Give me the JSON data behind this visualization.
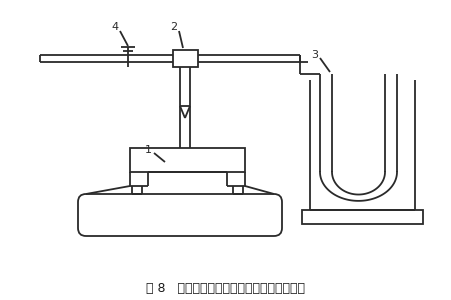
{
  "title": "图 8   自救器呼吸系统气密性试验装置示意图",
  "title_fontsize": 9,
  "bg_color": "#ffffff",
  "line_color": "#2a2a2a",
  "lw": 1.3,
  "figw": 4.51,
  "figh": 3.0,
  "dpi": 100
}
